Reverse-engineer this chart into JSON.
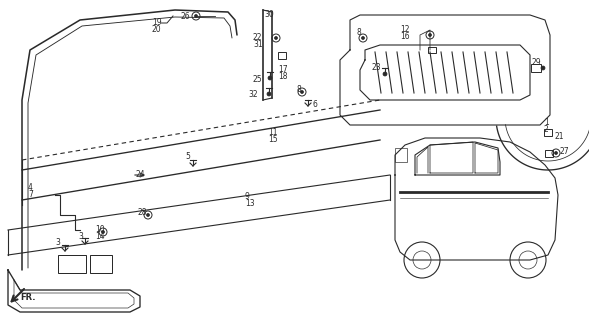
{
  "bg": "#ffffff",
  "lc": "#2a2a2a",
  "fig_w": 5.89,
  "fig_h": 3.2,
  "dpi": 100
}
